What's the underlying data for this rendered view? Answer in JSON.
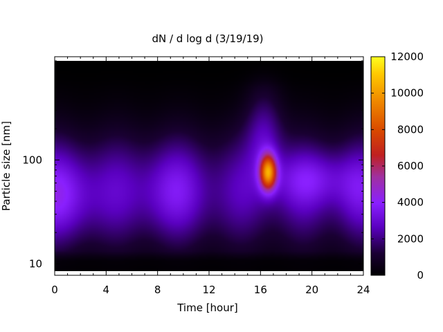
{
  "chart_data": {
    "type": "heatmap",
    "title": "dN / d log d (3/19/19)",
    "xlabel": "Time [hour]",
    "ylabel": "Particle size [nm]",
    "x_range": [
      0,
      24
    ],
    "x_ticks": [
      "0",
      "4",
      "8",
      "12",
      "16",
      "20",
      "24"
    ],
    "y_range_nm": [
      8.5,
      900
    ],
    "y_scale": "log",
    "y_ticks": [
      "10",
      "100"
    ],
    "colorbar": {
      "range": [
        0,
        12000
      ],
      "ticks": [
        "0",
        "2000",
        "4000",
        "6000",
        "8000",
        "10000",
        "12000"
      ],
      "palette": "black-blue-purple-red-yellow"
    },
    "features": [
      {
        "hour": 16.6,
        "size_nm": 75,
        "peak_value": 10000
      },
      {
        "hour": 20,
        "size_nm": 65,
        "peak_value": 5000
      },
      {
        "hour": 0,
        "size_nm": 45,
        "peak_value": 4600
      },
      {
        "hour": 9,
        "size_nm": 50,
        "peak_value": 4200
      }
    ]
  }
}
